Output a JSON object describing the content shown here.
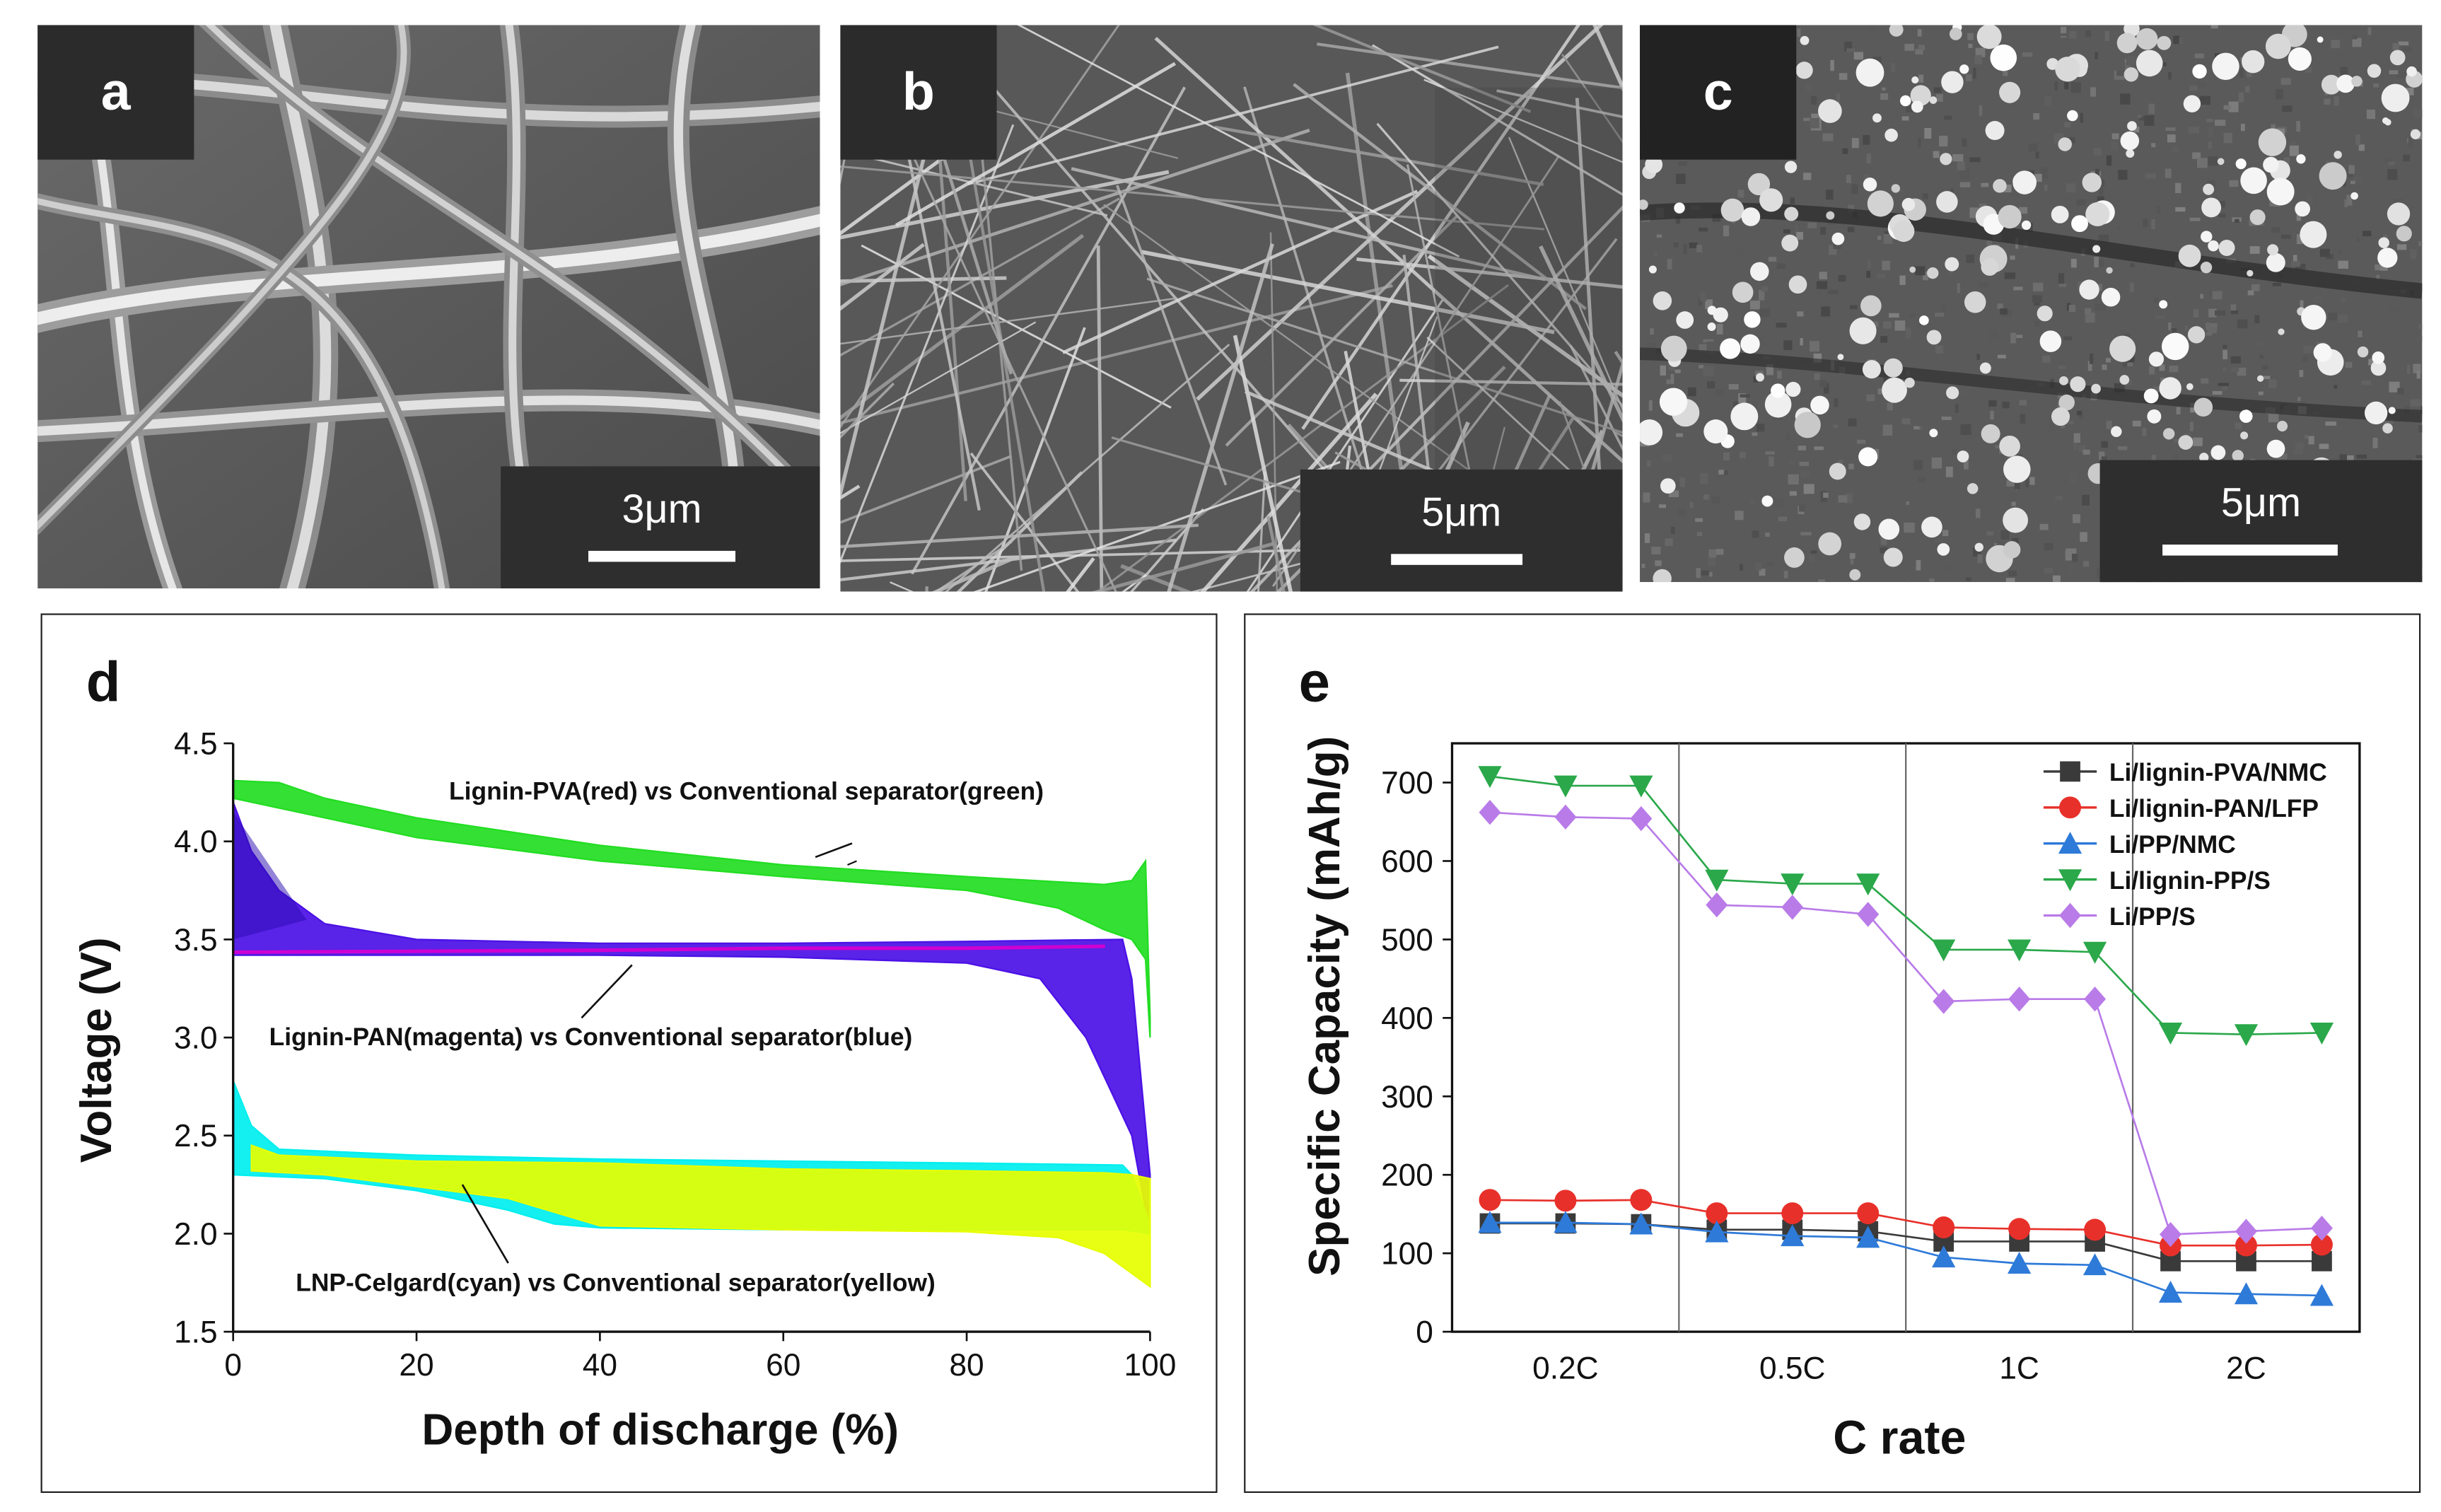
{
  "panels": {
    "a": {
      "letter": "a",
      "scale_label": "3μm"
    },
    "b": {
      "letter": "b",
      "scale_label": "5μm"
    },
    "c": {
      "letter": "c",
      "scale_label": "5μm"
    },
    "d": {
      "letter": "d"
    },
    "e": {
      "letter": "e"
    }
  },
  "chart_data": [
    {
      "panel": "d",
      "type": "area",
      "xlabel": "Depth of discharge (%)",
      "ylabel": "Voltage (V)",
      "xlim": [
        0,
        100
      ],
      "ylim": [
        1.5,
        4.5
      ],
      "xticks": [
        0,
        20,
        40,
        60,
        80,
        100
      ],
      "yticks": [
        1.5,
        2.0,
        2.5,
        3.0,
        3.5,
        4.0,
        4.5
      ],
      "xtick_labels": [
        "0",
        "20",
        "40",
        "60",
        "80",
        "100"
      ],
      "ytick_labels": [
        "1.5",
        "2.0",
        "2.5",
        "3.0",
        "3.5",
        "4.0",
        "4.5"
      ],
      "grid": false,
      "annotations": [
        "Lignin-PVA(red) vs Conventional separator(green)",
        "Lignin-PAN(magenta) vs Conventional separator(blue)",
        "LNP-Celgard(cyan) vs Conventional separator(yellow)"
      ],
      "bands": [
        {
          "color": "#22dd22",
          "upper": [
            [
              0,
              4.31
            ],
            [
              5,
              4.3
            ],
            [
              10,
              4.22
            ],
            [
              20,
              4.12
            ],
            [
              40,
              3.98
            ],
            [
              60,
              3.88
            ],
            [
              80,
              3.82
            ],
            [
              95,
              3.78
            ],
            [
              98,
              3.8
            ],
            [
              99.5,
              3.9
            ],
            [
              100,
              3.1
            ]
          ],
          "lower": [
            [
              0,
              4.22
            ],
            [
              10,
              4.12
            ],
            [
              20,
              4.02
            ],
            [
              40,
              3.9
            ],
            [
              60,
              3.82
            ],
            [
              80,
              3.75
            ],
            [
              90,
              3.66
            ],
            [
              95,
              3.55
            ],
            [
              98,
              3.5
            ],
            [
              99.5,
              3.4
            ],
            [
              100,
              3.0
            ]
          ]
        },
        {
          "color": "#4b10e6",
          "upper": [
            [
              0,
              4.2
            ],
            [
              2,
              3.95
            ],
            [
              5,
              3.75
            ],
            [
              10,
              3.58
            ],
            [
              20,
              3.5
            ],
            [
              40,
              3.48
            ],
            [
              60,
              3.48
            ],
            [
              80,
              3.49
            ],
            [
              97,
              3.5
            ],
            [
              98,
              3.3
            ],
            [
              99,
              2.8
            ],
            [
              100,
              2.3
            ]
          ],
          "lower": [
            [
              0,
              3.42
            ],
            [
              20,
              3.42
            ],
            [
              40,
              3.42
            ],
            [
              60,
              3.41
            ],
            [
              80,
              3.38
            ],
            [
              88,
              3.3
            ],
            [
              93,
              3.0
            ],
            [
              96,
              2.7
            ],
            [
              98,
              2.5
            ],
            [
              99,
              2.25
            ],
            [
              100,
              2.0
            ]
          ]
        },
        {
          "color": "#d000d0",
          "upper": [
            [
              0,
              3.44
            ],
            [
              40,
              3.45
            ],
            [
              60,
              3.46
            ],
            [
              80,
              3.46
            ],
            [
              95,
              3.47
            ]
          ],
          "lower": [
            [
              0,
              3.43
            ],
            [
              40,
              3.44
            ],
            [
              60,
              3.45
            ],
            [
              80,
              3.45
            ],
            [
              95,
              3.46
            ]
          ]
        },
        {
          "color": "#00eeee",
          "upper": [
            [
              0,
              2.78
            ],
            [
              2,
              2.55
            ],
            [
              5,
              2.43
            ],
            [
              20,
              2.4
            ],
            [
              40,
              2.38
            ],
            [
              60,
              2.37
            ],
            [
              80,
              2.36
            ],
            [
              97,
              2.35
            ],
            [
              98,
              2.3
            ],
            [
              100,
              2.05
            ]
          ],
          "lower": [
            [
              0,
              2.3
            ],
            [
              10,
              2.28
            ],
            [
              20,
              2.22
            ],
            [
              30,
              2.12
            ],
            [
              35,
              2.05
            ],
            [
              40,
              2.03
            ],
            [
              60,
              2.02
            ],
            [
              80,
              2.02
            ],
            [
              97,
              2.02
            ],
            [
              100,
              2.0
            ]
          ]
        },
        {
          "color": "#e6ff00",
          "upper": [
            [
              2,
              2.45
            ],
            [
              5,
              2.4
            ],
            [
              20,
              2.37
            ],
            [
              40,
              2.36
            ],
            [
              60,
              2.33
            ],
            [
              80,
              2.32
            ],
            [
              95,
              2.31
            ],
            [
              98,
              2.3
            ],
            [
              100,
              2.28
            ]
          ],
          "lower": [
            [
              2,
              2.32
            ],
            [
              10,
              2.3
            ],
            [
              30,
              2.18
            ],
            [
              40,
              2.04
            ],
            [
              60,
              2.02
            ],
            [
              80,
              2.01
            ],
            [
              90,
              1.98
            ],
            [
              95,
              1.9
            ],
            [
              100,
              1.73
            ]
          ]
        }
      ]
    },
    {
      "panel": "e",
      "type": "line",
      "xlabel": "C rate",
      "ylabel": "Specific Capacity (mAh/g)",
      "ylim": [
        0,
        750
      ],
      "yticks": [
        0,
        100,
        200,
        300,
        400,
        500,
        600,
        700
      ],
      "ytick_labels": [
        "0",
        "100",
        "200",
        "300",
        "400",
        "500",
        "600",
        "700"
      ],
      "categories": [
        "0.2C",
        "0.5C",
        "1C",
        "2C"
      ],
      "x": [
        1,
        2,
        3,
        4,
        5,
        6,
        7,
        8,
        9,
        10,
        11,
        12
      ],
      "xlim": [
        0.5,
        12.5
      ],
      "group_dividers": [
        3.5,
        6.5,
        9.5
      ],
      "grid": false,
      "legend_position": "top-right",
      "series": [
        {
          "name": "Li/lignin-PVA/NMC",
          "color": "#3a3a3a",
          "marker": "square",
          "values": [
            138,
            138,
            137,
            130,
            130,
            128,
            115,
            115,
            115,
            90,
            90,
            90
          ]
        },
        {
          "name": "Li/lignin-PAN/LFP",
          "color": "#e8302a",
          "marker": "circle",
          "values": [
            168,
            167,
            168,
            151,
            151,
            151,
            133,
            131,
            130,
            110,
            110,
            111
          ]
        },
        {
          "name": "Li/PP/NMC",
          "color": "#2e7ad8",
          "marker": "triangle-up",
          "values": [
            139,
            139,
            137,
            127,
            122,
            120,
            95,
            87,
            85,
            50,
            48,
            46
          ]
        },
        {
          "name": "Li/lignin-PP/S",
          "color": "#2aa84a",
          "marker": "triangle-down",
          "values": [
            708,
            696,
            696,
            576,
            571,
            571,
            487,
            487,
            484,
            381,
            379,
            381
          ]
        },
        {
          "name": "Li/PP/S",
          "color": "#b97be8",
          "marker": "diamond",
          "values": [
            662,
            656,
            654,
            544,
            541,
            532,
            421,
            424,
            424,
            124,
            128,
            132
          ]
        }
      ]
    }
  ]
}
